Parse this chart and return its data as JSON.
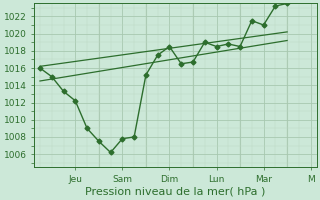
{
  "xlabel": "Pression niveau de la mer( hPa )",
  "bg_color": "#cce8d8",
  "line_color": "#2d6e2d",
  "grid_major_color": "#a8c8b0",
  "grid_minor_color": "#bcd8c4",
  "ylim": [
    1004.5,
    1023.5
  ],
  "yticks": [
    1006,
    1008,
    1010,
    1012,
    1014,
    1016,
    1018,
    1020,
    1022
  ],
  "xlim": [
    -0.5,
    23.5
  ],
  "day_tick_positions": [
    3,
    7,
    11,
    15,
    19,
    23
  ],
  "day_tick_labels": [
    "Jeu",
    "Sam",
    "Dim",
    "Lun",
    "Mar",
    "M"
  ],
  "main_line_x": [
    0,
    1,
    2,
    3,
    4,
    5,
    6,
    7,
    8,
    9,
    10,
    11,
    12,
    13,
    14,
    15,
    16,
    17,
    18,
    19,
    20,
    21
  ],
  "main_line_y": [
    1016.0,
    1015.0,
    1013.3,
    1012.2,
    1009.0,
    1007.5,
    1006.2,
    1007.8,
    1008.0,
    1015.2,
    1017.5,
    1018.5,
    1016.5,
    1016.7,
    1019.0,
    1018.5,
    1018.8,
    1018.5,
    1021.5,
    1021.0,
    1023.2,
    1023.5
  ],
  "trend1_x": [
    0,
    21
  ],
  "trend1_y": [
    1016.2,
    1020.2
  ],
  "trend2_x": [
    0,
    21
  ],
  "trend2_y": [
    1014.5,
    1019.2
  ],
  "day_vlines": [
    5,
    9,
    13,
    17,
    21
  ],
  "xlabel_fontsize": 8,
  "tick_fontsize": 6.5
}
